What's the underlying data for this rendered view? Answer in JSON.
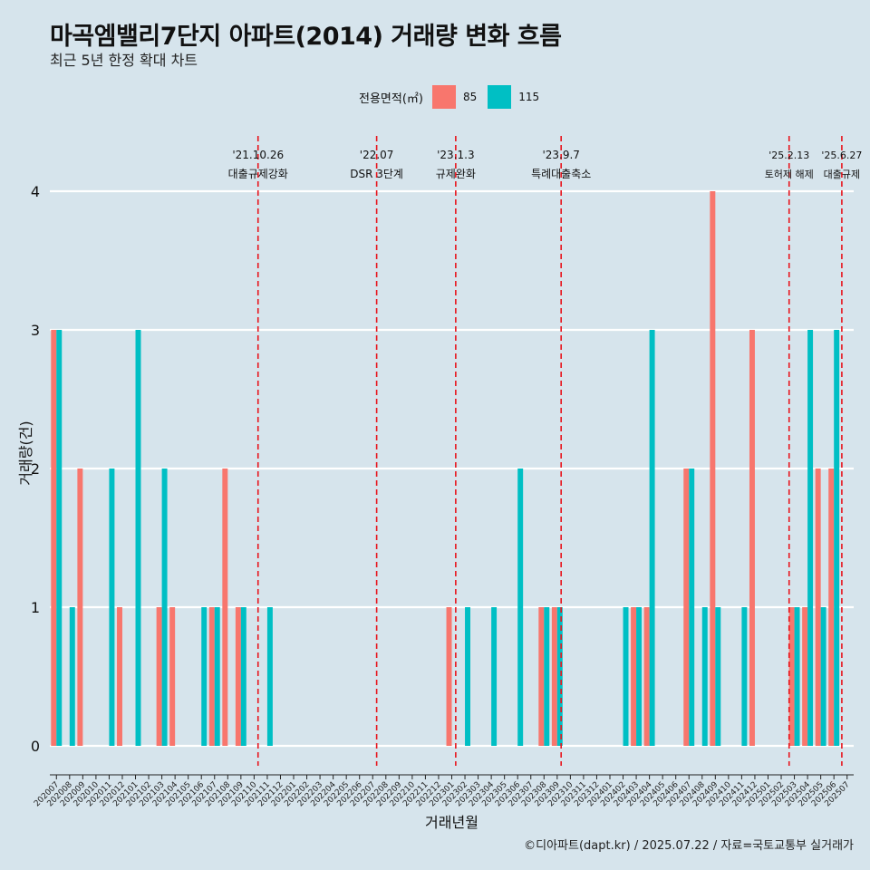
{
  "header": {
    "title": "마곡엠밸리7단지 아파트(2014) 거래량 변화 흐름",
    "subtitle": "최근 5년 한정 확대 차트",
    "caption": "©디아파트(dapt.kr) / 2025.07.22 / 자료=국토교통부 실거래가"
  },
  "chart_data": {
    "type": "bar",
    "xlabel": "거래년월",
    "ylabel": "거래량(건)",
    "ylim": [
      0,
      4
    ],
    "yticks": [
      0,
      1,
      2,
      3,
      4
    ],
    "legend": {
      "title": "전용면적(㎡)",
      "placement": "top"
    },
    "categories": [
      "202007",
      "202008",
      "202009",
      "202010",
      "202011",
      "202012",
      "202101",
      "202102",
      "202103",
      "202104",
      "202105",
      "202106",
      "202107",
      "202108",
      "202109",
      "202110",
      "202111",
      "202112",
      "202201",
      "202202",
      "202203",
      "202204",
      "202205",
      "202206",
      "202207",
      "202208",
      "202209",
      "202210",
      "202211",
      "202212",
      "202301",
      "202302",
      "202303",
      "202304",
      "202305",
      "202306",
      "202307",
      "202308",
      "202309",
      "202310",
      "202311",
      "202312",
      "202401",
      "202402",
      "202403",
      "202404",
      "202405",
      "202406",
      "202407",
      "202408",
      "202409",
      "202410",
      "202411",
      "202412",
      "202501",
      "202502",
      "202503",
      "202504",
      "202505",
      "202506",
      "202507"
    ],
    "series": [
      {
        "name": "85",
        "color": "#f8766d",
        "values": [
          3,
          0,
          2,
          0,
          0,
          1,
          0,
          0,
          1,
          1,
          0,
          0,
          1,
          2,
          1,
          0,
          0,
          0,
          0,
          0,
          0,
          0,
          0,
          0,
          0,
          0,
          0,
          0,
          0,
          0,
          1,
          0,
          0,
          0,
          0,
          0,
          0,
          1,
          1,
          0,
          0,
          0,
          0,
          0,
          1,
          1,
          0,
          0,
          2,
          0,
          4,
          0,
          0,
          3,
          0,
          0,
          1,
          1,
          2,
          2,
          0
        ]
      },
      {
        "name": "115",
        "color": "#00bfc4",
        "values": [
          3,
          1,
          0,
          0,
          2,
          0,
          3,
          0,
          2,
          0,
          0,
          1,
          1,
          0,
          1,
          0,
          1,
          0,
          0,
          0,
          0,
          0,
          0,
          0,
          0,
          0,
          0,
          0,
          0,
          0,
          0,
          1,
          0,
          1,
          0,
          2,
          0,
          1,
          1,
          0,
          0,
          0,
          0,
          1,
          1,
          3,
          0,
          0,
          2,
          1,
          1,
          0,
          1,
          0,
          0,
          0,
          1,
          3,
          1,
          3,
          0
        ]
      }
    ],
    "events": [
      {
        "date": "'21.10.26",
        "label": "대출규제강화",
        "index": 15.3
      },
      {
        "date": "'22.07",
        "label": "DSR 3단계",
        "index": 24.3
      },
      {
        "date": "'23.1.3",
        "label": "규제완화",
        "index": 30.3
      },
      {
        "date": "'23.9.7",
        "label": "특례대출축소",
        "index": 38.3
      },
      {
        "date": "'25.2.13",
        "label": "토허제 해제",
        "index": 55.6
      },
      {
        "date": "'25.6.27",
        "label": "대출규제",
        "index": 59.6
      }
    ],
    "grid": true
  }
}
